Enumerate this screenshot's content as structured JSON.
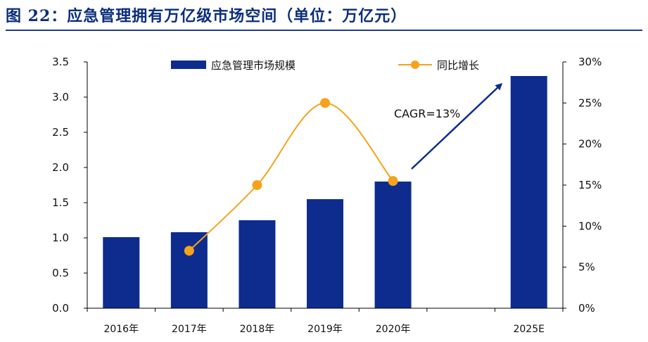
{
  "title": "图 22：应急管理拥有万亿级市场空间（单位：万亿元）",
  "colors": {
    "bar": "#0e2c8e",
    "line": "#f7a21b",
    "axis": "#000000",
    "title": "#0b2e7a",
    "arrow": "#0e2c8e"
  },
  "chart_data": {
    "type": "bar",
    "title": "图 22：应急管理拥有万亿级市场空间（单位：万亿元）",
    "categories": [
      "2016年",
      "2017年",
      "2018年",
      "2019年",
      "2020年",
      "",
      "2025E"
    ],
    "series": [
      {
        "name": "应急管理市场规模",
        "type": "bar",
        "axis": "left",
        "values": [
          1.01,
          1.08,
          1.25,
          1.55,
          1.8,
          null,
          3.3
        ]
      },
      {
        "name": "同比增长",
        "type": "line",
        "axis": "right",
        "values": [
          null,
          0.07,
          0.15,
          0.25,
          0.155,
          null,
          null
        ]
      }
    ],
    "y_left": {
      "ylim": [
        0,
        3.5
      ],
      "ticks": [
        "0.0",
        "0.5",
        "1.0",
        "1.5",
        "2.0",
        "2.5",
        "3.0",
        "3.5"
      ]
    },
    "y_right": {
      "ylim": [
        0,
        0.3
      ],
      "ticks": [
        "0%",
        "5%",
        "10%",
        "15%",
        "20%",
        "25%",
        "30%"
      ]
    },
    "xlabel": "",
    "ylabel": "",
    "legend": {
      "placement": "top"
    },
    "grid": false,
    "annotations": [
      {
        "text": "CAGR=13%"
      }
    ]
  }
}
